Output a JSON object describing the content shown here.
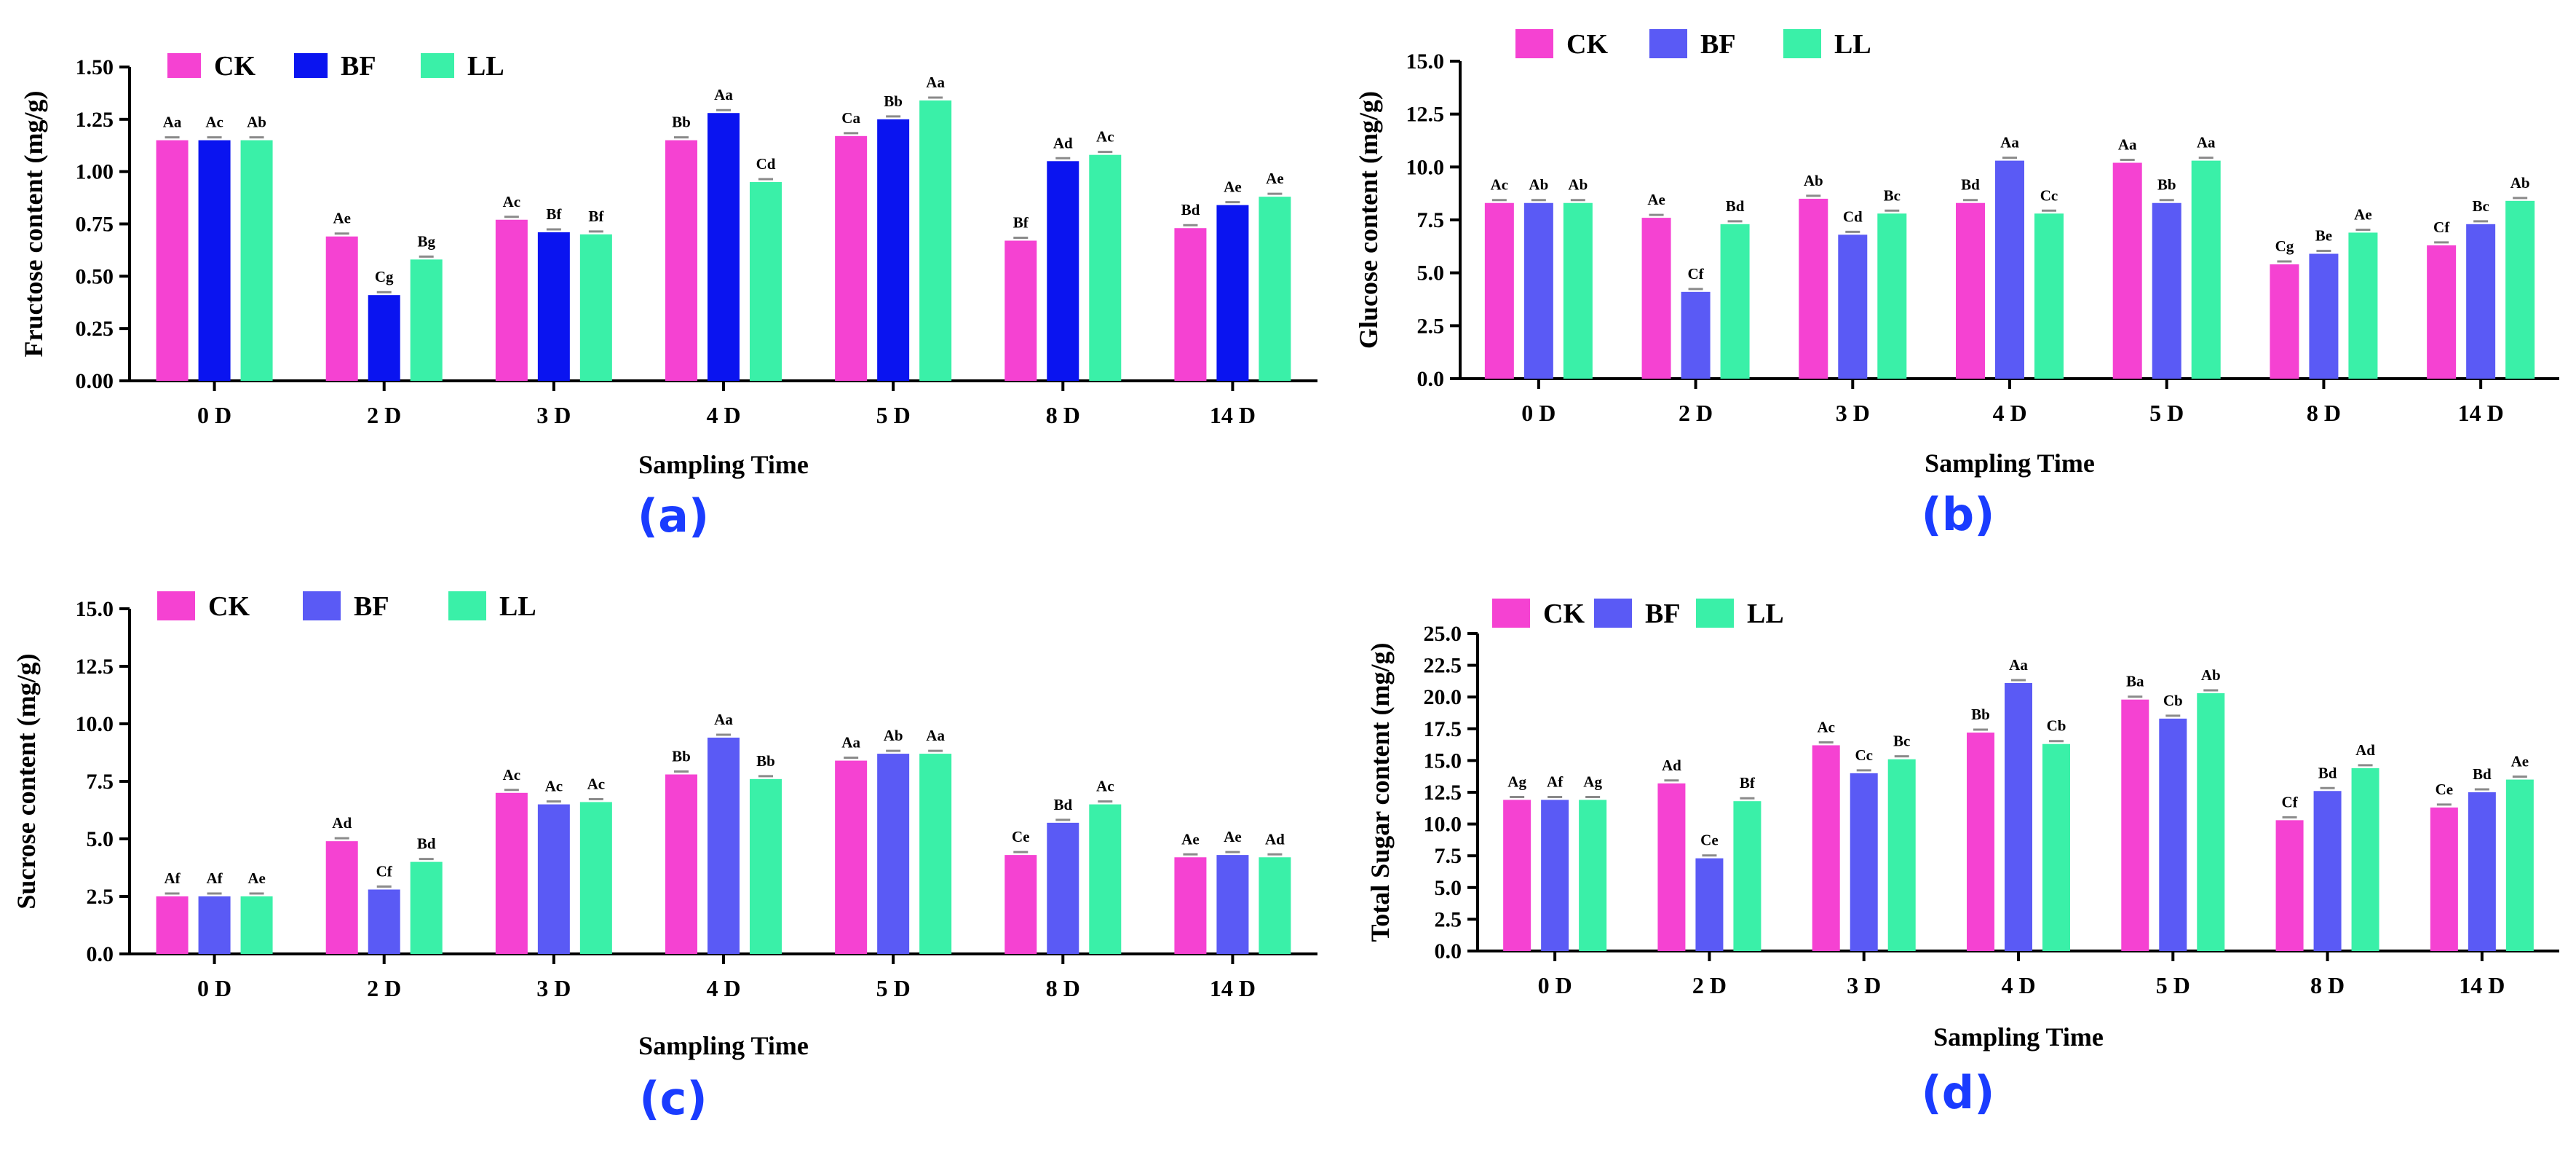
{
  "figure": {
    "panel_label_color": "#1a3cff"
  },
  "chart_data": [
    {
      "id": "a",
      "type": "bar",
      "panel_label": "(a)",
      "xlabel": "Sampling Time",
      "ylabel": "Fructose content (mg/g)",
      "ylim": [
        0,
        1.5
      ],
      "yticks": [
        "0.00",
        "0.25",
        "0.50",
        "0.75",
        "1.00",
        "1.25",
        "1.50"
      ],
      "tick_values": [
        0,
        0.25,
        0.5,
        0.75,
        1.0,
        1.25,
        1.5
      ],
      "categories": [
        "0 D",
        "2 D",
        "3 D",
        "4 D",
        "5 D",
        "8 D",
        "14 D"
      ],
      "legend_position": "top-left",
      "series": [
        {
          "name": "CK",
          "color": "#f542d2",
          "values": [
            1.15,
            0.69,
            0.77,
            1.15,
            1.17,
            0.67,
            0.73
          ],
          "labels": [
            "Aa",
            "Ae",
            "Ac",
            "Bb",
            "Ca",
            "Bf",
            "Bd"
          ]
        },
        {
          "name": "BF",
          "color": "#0a14f0",
          "values": [
            1.15,
            0.41,
            0.71,
            1.28,
            1.25,
            1.05,
            0.84
          ],
          "labels": [
            "Ac",
            "Cg",
            "Bf",
            "Aa",
            "Bb",
            "Ad",
            "Ae"
          ]
        },
        {
          "name": "LL",
          "color": "#3af0a8",
          "values": [
            1.15,
            0.58,
            0.7,
            0.95,
            1.34,
            1.08,
            0.88
          ],
          "labels": [
            "Ab",
            "Bg",
            "Bf",
            "Cd",
            "Aa",
            "Ac",
            "Ae"
          ]
        }
      ]
    },
    {
      "id": "b",
      "type": "bar",
      "panel_label": "(b)",
      "xlabel": "Sampling Time",
      "ylabel": "Glucose content (mg/g)",
      "ylim": [
        0,
        15
      ],
      "yticks": [
        "0.0",
        "2.5",
        "5.0",
        "7.5",
        "10.0",
        "12.5",
        "15.0"
      ],
      "tick_values": [
        0,
        2.5,
        5,
        7.5,
        10,
        12.5,
        15
      ],
      "categories": [
        "0 D",
        "2 D",
        "3 D",
        "4 D",
        "5 D",
        "8 D",
        "14 D"
      ],
      "legend_position": "top-left",
      "series": [
        {
          "name": "CK",
          "color": "#f542d2",
          "values": [
            8.3,
            7.6,
            8.5,
            8.3,
            10.2,
            5.4,
            6.3
          ],
          "labels": [
            "Ac",
            "Ae",
            "Ab",
            "Bd",
            "Aa",
            "Cg",
            "Cf"
          ]
        },
        {
          "name": "BF",
          "color": "#5a5af5",
          "values": [
            8.3,
            4.1,
            6.8,
            10.3,
            8.3,
            5.9,
            7.3
          ],
          "labels": [
            "Ab",
            "Cf",
            "Cd",
            "Aa",
            "Bb",
            "Be",
            "Bc"
          ]
        },
        {
          "name": "LL",
          "color": "#3af0a8",
          "values": [
            8.3,
            7.3,
            7.8,
            7.8,
            10.3,
            6.9,
            8.4
          ],
          "labels": [
            "Ab",
            "Bd",
            "Bc",
            "Cc",
            "Aa",
            "Ae",
            "Ab"
          ]
        }
      ]
    },
    {
      "id": "c",
      "type": "bar",
      "panel_label": "(c)",
      "xlabel": "Sampling Time",
      "ylabel": "Sucrose content (mg/g)",
      "ylim": [
        0,
        15
      ],
      "yticks": [
        "0.0",
        "2.5",
        "5.0",
        "7.5",
        "10.0",
        "12.5",
        "15.0"
      ],
      "tick_values": [
        0,
        2.5,
        5,
        7.5,
        10,
        12.5,
        15
      ],
      "categories": [
        "0 D",
        "2 D",
        "3 D",
        "4 D",
        "5 D",
        "8 D",
        "14 D"
      ],
      "legend_position": "top-left",
      "series": [
        {
          "name": "CK",
          "color": "#f542d2",
          "values": [
            2.5,
            4.9,
            7.0,
            7.8,
            8.4,
            4.3,
            4.2
          ],
          "labels": [
            "Af",
            "Ad",
            "Ac",
            "Bb",
            "Aa",
            "Ce",
            "Ae"
          ]
        },
        {
          "name": "BF",
          "color": "#5a5af5",
          "values": [
            2.5,
            2.8,
            6.5,
            9.4,
            8.7,
            5.7,
            4.3
          ],
          "labels": [
            "Af",
            "Cf",
            "Ac",
            "Aa",
            "Ab",
            "Bd",
            "Ae"
          ]
        },
        {
          "name": "LL",
          "color": "#3af0a8",
          "values": [
            2.5,
            4.0,
            6.6,
            7.6,
            8.7,
            6.5,
            4.2
          ],
          "labels": [
            "Ae",
            "Bd",
            "Ac",
            "Bb",
            "Aa",
            "Ac",
            "Ad"
          ]
        }
      ]
    },
    {
      "id": "d",
      "type": "bar",
      "panel_label": "(d)",
      "xlabel": "Sampling Time",
      "ylabel": "Total Sugar content (mg/g)",
      "ylim": [
        0,
        25
      ],
      "yticks": [
        "0.0",
        "2.5",
        "5.0",
        "7.5",
        "10.0",
        "12.5",
        "15.0",
        "17.5",
        "20.0",
        "22.5",
        "25.0"
      ],
      "tick_values": [
        0,
        2.5,
        5,
        7.5,
        10,
        12.5,
        15,
        17.5,
        20,
        22.5,
        25
      ],
      "categories": [
        "0 D",
        "2 D",
        "3 D",
        "4 D",
        "5 D",
        "8 D",
        "14 D"
      ],
      "legend_position": "top-left",
      "series": [
        {
          "name": "CK",
          "color": "#f542d2",
          "values": [
            11.9,
            13.2,
            16.2,
            17.2,
            19.8,
            10.3,
            11.3
          ],
          "labels": [
            "Ag",
            "Ad",
            "Ac",
            "Bb",
            "Ba",
            "Cf",
            "Ce"
          ]
        },
        {
          "name": "BF",
          "color": "#5a5af5",
          "values": [
            11.9,
            7.3,
            14.0,
            21.1,
            18.3,
            12.6,
            12.5
          ],
          "labels": [
            "Af",
            "Ce",
            "Cc",
            "Aa",
            "Cb",
            "Bd",
            "Bd"
          ]
        },
        {
          "name": "LL",
          "color": "#3af0a8",
          "values": [
            11.9,
            11.8,
            15.1,
            16.3,
            20.3,
            14.4,
            13.5
          ],
          "labels": [
            "Ag",
            "Bf",
            "Bc",
            "Cb",
            "Ab",
            "Ad",
            "Ae"
          ]
        }
      ]
    }
  ]
}
